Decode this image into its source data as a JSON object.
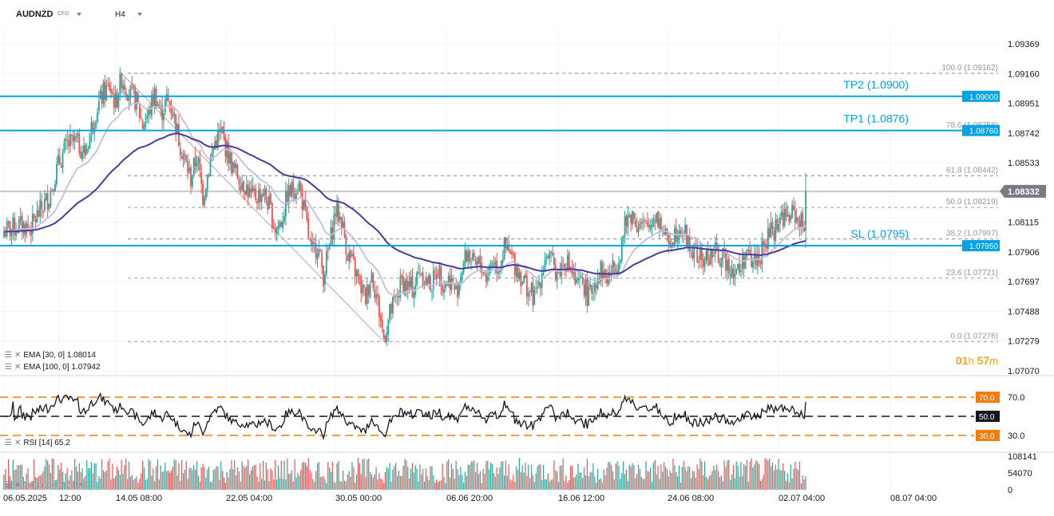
{
  "header": {
    "symbol": "AUDNZD",
    "symbol_tag": "CFD",
    "timeframe": "H4",
    "timer": {
      "hours": "01",
      "h_unit": "h",
      "minutes": "57",
      "m_unit": "m"
    }
  },
  "colors": {
    "up": "#26a69a",
    "down": "#ef5350",
    "ema30": "#c6bddf",
    "ema100": "#4b3a99",
    "hline": "#00a2e8",
    "rsi_band": "#f57c00",
    "price_label": "#787b86"
  },
  "chart_data": [
    {
      "type": "candlestick",
      "y_axis": {
        "ticks": [
          "1.09369",
          "1.09160",
          "1.08951",
          "1.08742",
          "1.08533",
          "1.08324",
          "1.08115",
          "1.07906",
          "1.07697",
          "1.07488",
          "1.07279",
          "1.07070"
        ],
        "range": [
          1.0707,
          1.09369
        ]
      },
      "x_axis": {
        "ticks": [
          "06.05.2025",
          "12:00",
          "14.05  08:00",
          "22.05  04:00",
          "30.05  00:00",
          "06.06  20:00",
          "16.06  12:00",
          "24.06  08:00",
          "02.07  04:00",
          "08.07  04:00"
        ]
      },
      "current_price": "1.08332",
      "horizontal_levels": [
        {
          "label": "TP2 (1.0900)",
          "price": 1.09,
          "tag": "1.09000"
        },
        {
          "label": "TP1 (1.0876)",
          "price": 1.0876,
          "tag": "1.08760"
        },
        {
          "label": "SL (1.0795)",
          "price": 1.0795,
          "tag": "1.07950"
        }
      ],
      "fibonacci": [
        {
          "label": "100.0 (1.09162)",
          "price": 1.09162
        },
        {
          "label": "78.6 (1.08758)",
          "price": 1.08758
        },
        {
          "label": "61.8 (1.08442)",
          "price": 1.08442
        },
        {
          "label": "50.0 (1.08219)",
          "price": 1.08219
        },
        {
          "label": "38.2 (1.07997)",
          "price": 1.07997
        },
        {
          "label": "23.6 (1.07721)",
          "price": 1.07721
        },
        {
          "label": "0.0 (1.07276)",
          "price": 1.07276
        }
      ],
      "close_path": [
        [
          0,
          1.0805
        ],
        [
          10,
          1.0809
        ],
        [
          18,
          1.0808
        ],
        [
          22,
          1.0816
        ],
        [
          30,
          1.083
        ],
        [
          36,
          1.0852
        ],
        [
          42,
          1.0866
        ],
        [
          48,
          1.0868
        ],
        [
          54,
          1.086
        ],
        [
          58,
          1.0878
        ],
        [
          62,
          1.0893
        ],
        [
          66,
          1.0902
        ],
        [
          70,
          1.0907
        ],
        [
          74,
          1.0895
        ],
        [
          78,
          1.0913
        ],
        [
          82,
          1.0905
        ],
        [
          88,
          1.0896
        ],
        [
          92,
          1.088
        ],
        [
          96,
          1.0888
        ],
        [
          100,
          1.0902
        ],
        [
          104,
          1.0888
        ],
        [
          108,
          1.0897
        ],
        [
          112,
          1.089
        ],
        [
          116,
          1.087
        ],
        [
          120,
          1.0855
        ],
        [
          124,
          1.0842
        ],
        [
          128,
          1.0858
        ],
        [
          132,
          1.083
        ],
        [
          136,
          1.085
        ],
        [
          140,
          1.0868
        ],
        [
          144,
          1.0874
        ],
        [
          148,
          1.0862
        ],
        [
          152,
          1.0849
        ],
        [
          156,
          1.0843
        ],
        [
          160,
          1.0838
        ],
        [
          164,
          1.0829
        ],
        [
          168,
          1.083
        ],
        [
          172,
          1.0833
        ],
        [
          176,
          1.0823
        ],
        [
          180,
          1.0807
        ],
        [
          184,
          1.0812
        ],
        [
          188,
          1.083
        ],
        [
          192,
          1.0835
        ],
        [
          196,
          1.0838
        ],
        [
          200,
          1.0815
        ],
        [
          204,
          1.0789
        ],
        [
          208,
          1.0796
        ],
        [
          212,
          1.0774
        ],
        [
          216,
          1.0795
        ],
        [
          220,
          1.082
        ],
        [
          224,
          1.0813
        ],
        [
          228,
          1.079
        ],
        [
          232,
          1.078
        ],
        [
          236,
          1.0768
        ],
        [
          240,
          1.0758
        ],
        [
          244,
          1.0776
        ],
        [
          248,
          1.0755
        ],
        [
          252,
          1.073
        ],
        [
          256,
          1.0747
        ],
        [
          260,
          1.0757
        ],
        [
          264,
          1.077
        ],
        [
          268,
          1.0766
        ],
        [
          272,
          1.0765
        ],
        [
          276,
          1.0779
        ],
        [
          280,
          1.077
        ],
        [
          284,
          1.0768
        ],
        [
          288,
          1.0779
        ],
        [
          292,
          1.0768
        ],
        [
          296,
          1.0772
        ],
        [
          300,
          1.0762
        ],
        [
          304,
          1.078
        ],
        [
          308,
          1.0791
        ],
        [
          312,
          1.0779
        ],
        [
          316,
          1.0783
        ],
        [
          320,
          1.0773
        ],
        [
          324,
          1.0785
        ],
        [
          328,
          1.078
        ],
        [
          332,
          1.0793
        ],
        [
          336,
          1.0788
        ],
        [
          340,
          1.078
        ],
        [
          344,
          1.0772
        ],
        [
          348,
          1.0764
        ],
        [
          352,
          1.0758
        ],
        [
          356,
          1.0773
        ],
        [
          360,
          1.079
        ],
        [
          364,
          1.0781
        ],
        [
          368,
          1.0776
        ],
        [
          372,
          1.0786
        ],
        [
          376,
          1.0779
        ],
        [
          380,
          1.0765
        ],
        [
          384,
          1.077
        ],
        [
          388,
          1.0758
        ],
        [
          392,
          1.077
        ],
        [
          396,
          1.0778
        ],
        [
          400,
          1.0772
        ],
        [
          404,
          1.0778
        ],
        [
          408,
          1.0787
        ],
        [
          412,
          1.0808
        ],
        [
          416,
          1.0818
        ],
        [
          420,
          1.0811
        ],
        [
          424,
          1.0808
        ],
        [
          428,
          1.0808
        ],
        [
          432,
          1.0818
        ],
        [
          436,
          1.081
        ],
        [
          440,
          1.0797
        ],
        [
          444,
          1.0802
        ],
        [
          448,
          1.081
        ],
        [
          452,
          1.0803
        ],
        [
          456,
          1.0792
        ],
        [
          460,
          1.0788
        ],
        [
          464,
          1.0784
        ],
        [
          468,
          1.0788
        ],
        [
          472,
          1.079
        ],
        [
          476,
          1.0786
        ],
        [
          480,
          1.0784
        ],
        [
          484,
          1.0778
        ],
        [
          488,
          1.0777
        ],
        [
          492,
          1.079
        ],
        [
          496,
          1.0783
        ],
        [
          500,
          1.0787
        ],
        [
          504,
          1.0792
        ],
        [
          508,
          1.0804
        ],
        [
          512,
          1.0808
        ],
        [
          516,
          1.0816
        ],
        [
          520,
          1.0814
        ],
        [
          524,
          1.0818
        ],
        [
          528,
          1.0812
        ],
        [
          532,
          1.0805
        ]
      ]
    },
    {
      "type": "line",
      "name": "EMA [30, 0] 1.08014",
      "series": "ema30"
    },
    {
      "type": "line",
      "name": "EMA [100, 0] 1.07942",
      "series": "ema100"
    },
    {
      "type": "line",
      "name": "RSI [14] 65.2",
      "levels": [
        {
          "value": "70.0"
        },
        {
          "value": "50.0"
        },
        {
          "value": "30.0"
        }
      ],
      "axis_ticks": [
        "70.0",
        "30.0"
      ]
    },
    {
      "type": "bar",
      "name": "Volume (tick)",
      "current": "19033",
      "axis_ticks": [
        "108141",
        "54070",
        "0"
      ]
    }
  ],
  "legend": {
    "ema30": "EMA [30, 0] 1.08014",
    "ema100": "EMA [100, 0] 1.07942",
    "rsi": "RSI [14] 65.2",
    "volume": "Volume (tick) 19033"
  }
}
